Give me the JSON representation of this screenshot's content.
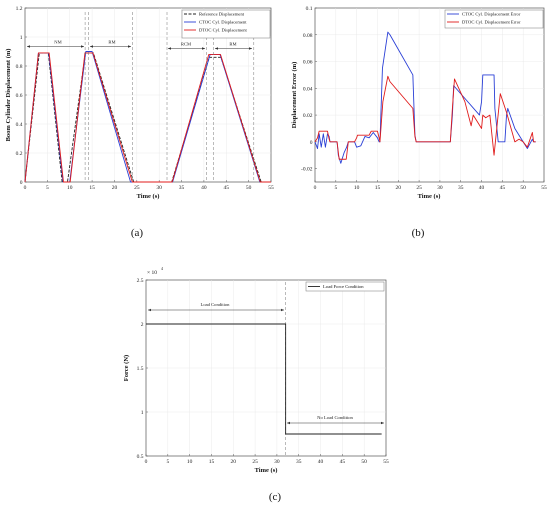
{
  "chart_data": [
    {
      "id": "a",
      "type": "line",
      "panel_label": "(a)",
      "xlabel": "Time (s)",
      "ylabel": "Boom Cylinder Displacement (m)",
      "xlim": [
        0,
        55
      ],
      "ylim": [
        0,
        1.2
      ],
      "xticks": [
        "0",
        "5",
        "10",
        "15",
        "20",
        "25",
        "30",
        "35",
        "40",
        "45",
        "50",
        "55"
      ],
      "yticks": [
        "0",
        "0.2",
        "0.4",
        "0.6",
        "0.8",
        "1",
        "1.2"
      ],
      "legend_position": "top-right",
      "series": [
        {
          "name": "Reference Displacement",
          "color": "#222222",
          "dash": true,
          "x": [
            0,
            3.2,
            5.2,
            8.3,
            9.5,
            13.5,
            15.3,
            24.3,
            32.8,
            41.2,
            43.8,
            52.8,
            55
          ],
          "y": [
            0,
            0.89,
            0.89,
            0,
            0,
            0.89,
            0.89,
            0,
            0,
            0.86,
            0.86,
            0,
            0
          ]
        },
        {
          "name": "CTOC Cyl. Displacement",
          "color": "#2a3fd6",
          "dash": false,
          "x": [
            0,
            3.0,
            5.3,
            8.5,
            10,
            13.6,
            15.0,
            23.6,
            33.0,
            41.4,
            43.6,
            52.5,
            55
          ],
          "y": [
            0,
            0.89,
            0.89,
            0,
            0,
            0.9,
            0.9,
            0,
            0,
            0.88,
            0.88,
            0,
            0
          ]
        },
        {
          "name": "DTOC Cyl. Displacement",
          "color": "#e01b1b",
          "dash": false,
          "x": [
            0,
            3.0,
            5.4,
            8.6,
            10.1,
            13.4,
            15.2,
            24.0,
            32.9,
            41.1,
            43.7,
            52.6,
            55
          ],
          "y": [
            0,
            0.89,
            0.89,
            0,
            0,
            0.89,
            0.89,
            0,
            0,
            0.88,
            0.88,
            0,
            0
          ]
        }
      ],
      "annotations": [
        "NM",
        "RM",
        "RCM",
        "RM"
      ]
    },
    {
      "id": "b",
      "type": "line",
      "panel_label": "(b)",
      "xlabel": "Time (s)",
      "ylabel": "Displacement Error (m)",
      "xlim": [
        0,
        55
      ],
      "ylim": [
        -0.03,
        0.1
      ],
      "xticks": [
        "0",
        "5",
        "10",
        "15",
        "20",
        "25",
        "30",
        "35",
        "40",
        "45",
        "50",
        "55"
      ],
      "yticks": [
        "-0.02",
        "0",
        "0.02",
        "0.04",
        "0.06",
        "0.08",
        "0.1"
      ],
      "legend_position": "top-right",
      "series": [
        {
          "name": "CTOC Cyl. Displacement Error",
          "color": "#2a3fd6",
          "x": [
            0,
            0.6,
            1,
            1.5,
            2,
            2.5,
            3,
            3.4,
            3.6,
            5.3,
            5.6,
            6.2,
            7,
            7.6,
            8,
            9.5,
            10,
            11,
            12,
            13,
            14,
            15,
            15.4,
            15.6,
            16.2,
            17.5,
            18,
            23.5,
            24,
            24.3,
            32.5,
            33,
            33.3,
            39.5,
            40,
            40.3,
            43,
            43.2,
            44,
            45.6,
            46,
            46.3,
            48,
            50,
            51,
            52.2,
            52.5,
            53
          ],
          "y": [
            0,
            -0.005,
            0.006,
            -0.004,
            0.006,
            -0.004,
            0.006,
            0.004,
            0,
            0,
            -0.01,
            -0.016,
            -0.008,
            -0.004,
            0,
            0,
            -0.004,
            -0.003,
            0.004,
            0.003,
            0.007,
            0.003,
            0,
            0,
            0.055,
            0.082,
            0.08,
            0.05,
            0.005,
            0,
            0,
            0.02,
            0.042,
            0.02,
            0.03,
            0.05,
            0.05,
            0.025,
            0,
            0,
            0.02,
            0.025,
            0.01,
            0,
            -0.005,
            0.002,
            0,
            0
          ]
        },
        {
          "name": "DTOC Cyl. Displacement Error",
          "color": "#e01b1b",
          "x": [
            0,
            0.6,
            1,
            3,
            3.4,
            3.6,
            5.3,
            5.8,
            6.2,
            7.5,
            8,
            9.5,
            10,
            10.2,
            13,
            13.5,
            15,
            15.4,
            15.6,
            16.3,
            17.5,
            18,
            23.5,
            24,
            24.3,
            32.5,
            33,
            33.5,
            36,
            37.5,
            38,
            39,
            40,
            40.3,
            41,
            42,
            43,
            44.5,
            46,
            48,
            49,
            50,
            51,
            52.2,
            52.5,
            53
          ],
          "y": [
            0,
            0.003,
            0.008,
            0.008,
            0.002,
            0,
            0,
            -0.013,
            -0.013,
            -0.013,
            0,
            0,
            0.003,
            0.005,
            0.005,
            0.008,
            0.008,
            0.003,
            0,
            0.03,
            0.049,
            0.045,
            0.025,
            0.004,
            0,
            0,
            0.025,
            0.047,
            0.03,
            0.012,
            0.02,
            0.015,
            0.01,
            0.02,
            0.018,
            0.02,
            -0.01,
            0.036,
            0.022,
            0,
            0.002,
            0,
            -0.004,
            0.007,
            0,
            0
          ]
        }
      ]
    },
    {
      "id": "c",
      "type": "line",
      "panel_label": "(c)",
      "xlabel": "Time (s)",
      "ylabel": "Force (N)",
      "exponent_label": "× 10",
      "exponent": "4",
      "xlim": [
        0,
        55
      ],
      "ylim": [
        0.5,
        2.5
      ],
      "xticks": [
        "0",
        "5",
        "10",
        "15",
        "20",
        "25",
        "30",
        "35",
        "40",
        "45",
        "50",
        "55"
      ],
      "yticks": [
        "0.5",
        "1",
        "1.5",
        "2",
        "2.5"
      ],
      "legend_position": "top-right",
      "series": [
        {
          "name": "Load Force Condition",
          "color": "#222222",
          "x": [
            0,
            32,
            32,
            54
          ],
          "y": [
            2.0,
            2.0,
            0.75,
            0.75
          ]
        }
      ],
      "annotations": [
        "Load Condition",
        "No Load Condition"
      ]
    }
  ]
}
